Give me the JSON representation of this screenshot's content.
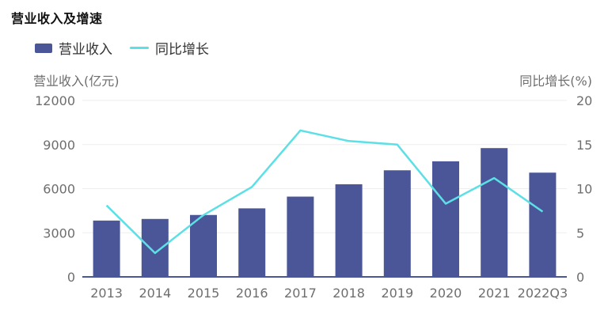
{
  "title": "营业收入及增速",
  "legend": {
    "bar_label": "营业收入",
    "line_label": "同比增长"
  },
  "colors": {
    "bar": "#4b5699",
    "line": "#5ce0e6",
    "axis": "#4b5699",
    "grid": "#eeeeee"
  },
  "chart_data": {
    "type": "bar+line",
    "title": "营业收入及增速",
    "categories": [
      "2013",
      "2014",
      "2015",
      "2016",
      "2017",
      "2018",
      "2019",
      "2020",
      "2021",
      "2022Q3"
    ],
    "series": [
      {
        "name": "营业收入",
        "type": "bar",
        "axis": "left",
        "values": [
          3830,
          3940,
          4210,
          4660,
          5460,
          6300,
          7250,
          7860,
          8760,
          7090
        ]
      },
      {
        "name": "同比增长",
        "type": "line",
        "axis": "right",
        "values": [
          8.1,
          2.7,
          7.0,
          10.2,
          16.6,
          15.4,
          15.0,
          8.3,
          11.2,
          7.4
        ]
      }
    ],
    "ylabel_left": "营业收入(亿元)",
    "ylabel_right": "同比增长(%)",
    "ylim_left": [
      0,
      12000
    ],
    "ylim_right": [
      0,
      20
    ],
    "yticks_left": [
      "0",
      "3000",
      "6000",
      "9000",
      "12000"
    ],
    "yticks_right": [
      "0",
      "5",
      "10",
      "15",
      "20"
    ],
    "grid": true,
    "legend_position": "top-left"
  }
}
